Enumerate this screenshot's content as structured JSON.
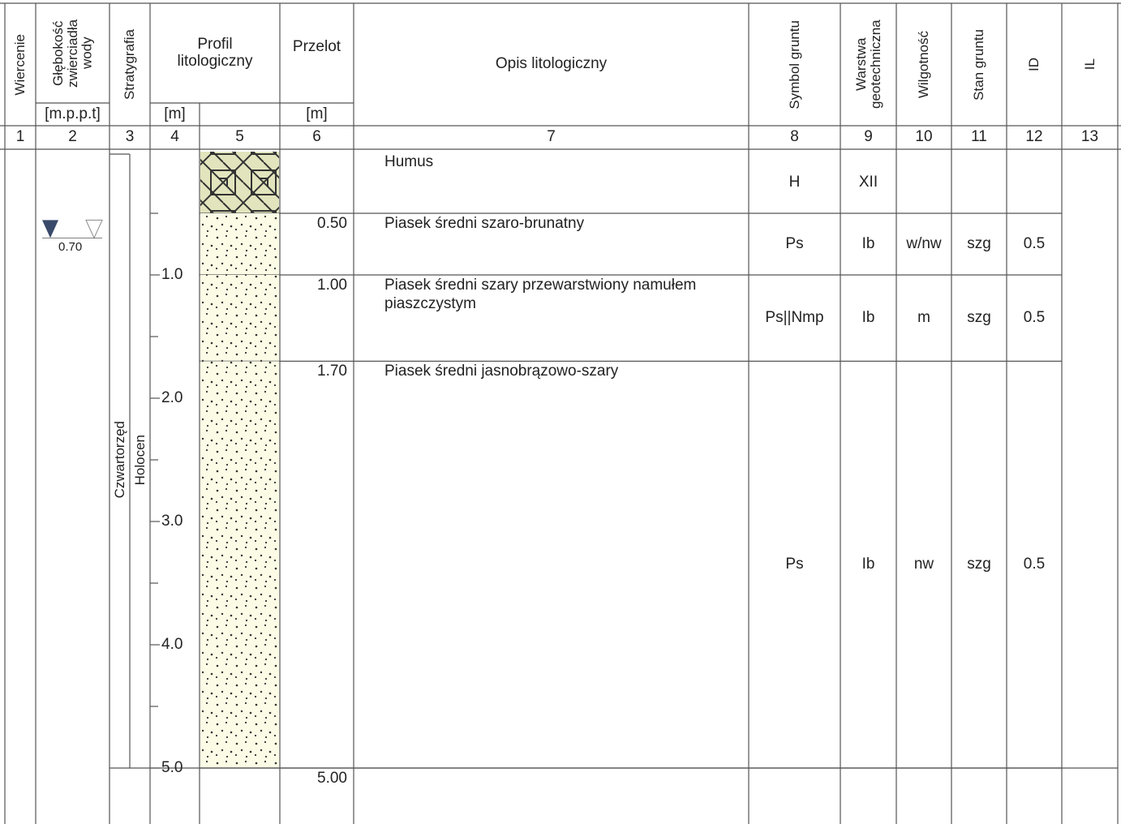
{
  "header": {
    "columns": [
      "Wiercenie",
      "Głębokość zwierciadła wody",
      "Stratygrafia",
      "Profil litologiczny",
      "Przelot",
      "Opis litologiczny",
      "Symbol gruntu",
      "Warstwa geotechniczna",
      "Wilgotność",
      "Stan gruntu",
      "ID",
      "IL"
    ],
    "units": {
      "water_depth": "[m.p.p.t]",
      "profile": "[m]",
      "przelot": "[m]"
    },
    "numbers": [
      "1",
      "2",
      "3",
      "4",
      "5",
      "6",
      "7",
      "8",
      "9",
      "10",
      "11",
      "12",
      "13"
    ]
  },
  "water_level": "0.70",
  "stratigraphy": {
    "era": "Czwartorzęd",
    "epoch": "Holocen"
  },
  "depth_scale": [
    "1.0",
    "2.0",
    "3.0",
    "4.0",
    "5.0"
  ],
  "layers": [
    {
      "bottom": "0.50",
      "description": "Humus",
      "symbol": "H",
      "geotech_layer": "XII"
    },
    {
      "bottom": "1.00",
      "description": "Piasek średni szaro-brunatny",
      "symbol": "Ps",
      "geotech_layer": "Ib",
      "moisture": "w/nw",
      "state": "szg",
      "id": "0.5"
    },
    {
      "bottom": "1.70",
      "description": "Piasek średni szary przewarstwiony namułem piaszczystym",
      "symbol": "Ps||Nmp",
      "geotech_layer": "Ib",
      "moisture": "m",
      "state": "szg",
      "id": "0.5"
    },
    {
      "bottom": "5.00",
      "description": "Piasek średni jasnobrązowo-szary",
      "symbol": "Ps",
      "geotech_layer": "Ib",
      "moisture": "nw",
      "state": "szg",
      "id": "0.5"
    }
  ]
}
